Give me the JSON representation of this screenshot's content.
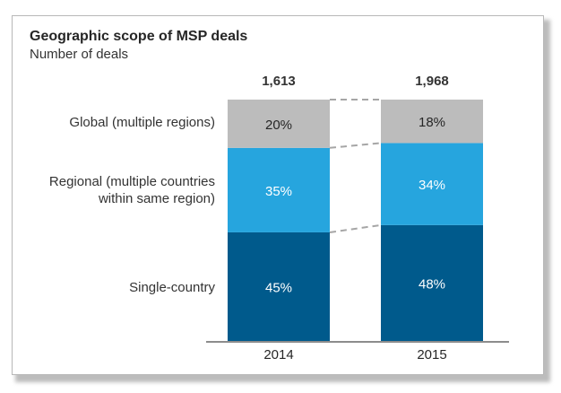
{
  "chart_data": {
    "type": "bar",
    "stacked": true,
    "title": "Geographic scope of MSP deals",
    "subtitle": "Number of deals",
    "categories": [
      "2014",
      "2015"
    ],
    "totals": [
      "1,613",
      "1,968"
    ],
    "series": [
      {
        "name": "Single-country",
        "color": "#005a8c",
        "values": [
          45,
          48
        ],
        "labels": [
          "45%",
          "48%"
        ]
      },
      {
        "name": "Regional (multiple countries within  same region)",
        "color": "#26a5de",
        "values": [
          35,
          34
        ],
        "labels": [
          "35%",
          "34%"
        ]
      },
      {
        "name": "Global (multiple regions)",
        "color": "#bcbcbc",
        "values": [
          20,
          18
        ],
        "labels": [
          "20%",
          "18%"
        ]
      }
    ],
    "ylim": [
      0,
      100
    ],
    "legend": "left",
    "connector_lines": "dashed"
  },
  "labels": {
    "global": "Global (multiple regions)",
    "regional_line1": "Regional (multiple countries",
    "regional_line2": "within  same region)",
    "single": "Single-country"
  }
}
